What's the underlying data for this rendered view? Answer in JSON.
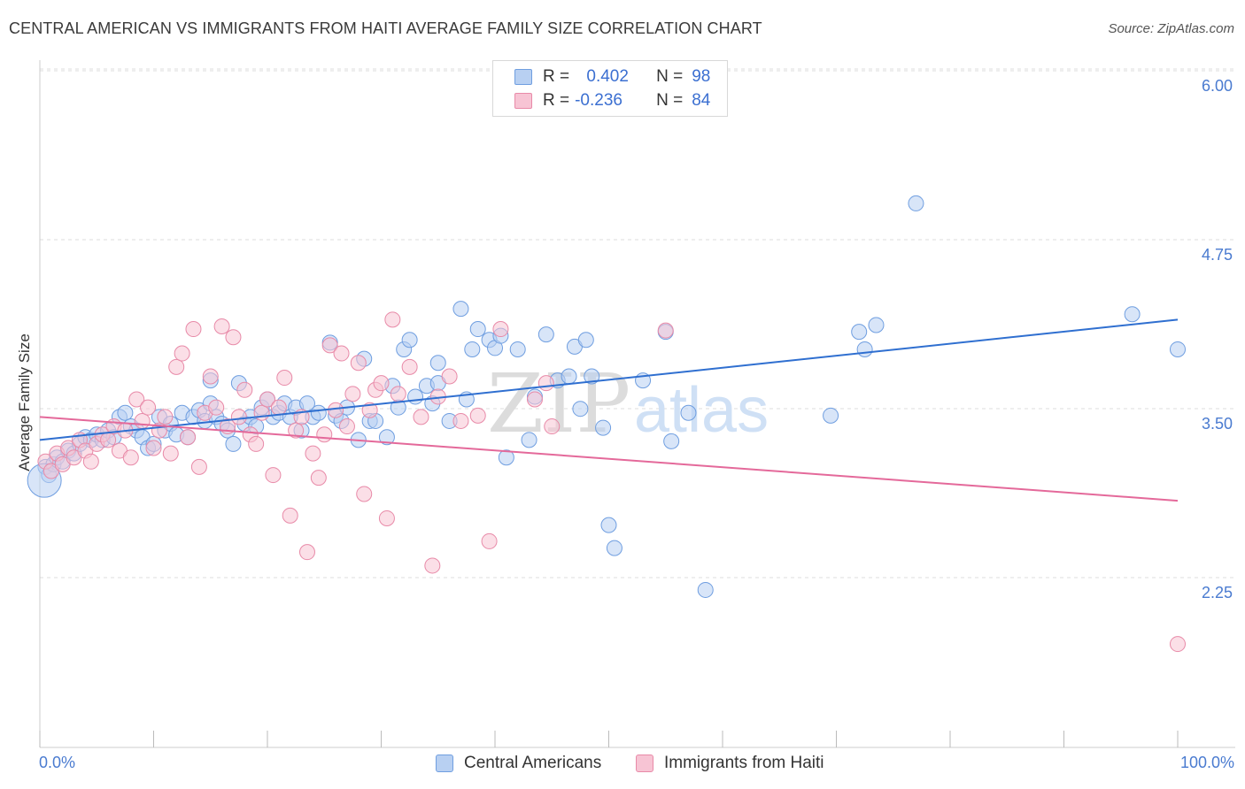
{
  "title": "CENTRAL AMERICAN VS IMMIGRANTS FROM HAITI AVERAGE FAMILY SIZE CORRELATION CHART",
  "source": "Source: ZipAtlas.com",
  "watermark": {
    "zip": "ZIP",
    "atlas": "atlas"
  },
  "colors": {
    "blue_fill": "#b8d0f2",
    "blue_stroke": "#6f9ee0",
    "blue_line": "#2f6fd0",
    "pink_fill": "#f7c4d4",
    "pink_stroke": "#e88aa8",
    "pink_line": "#e4699a",
    "tick_label": "#4a7bd0",
    "grid": "#dddddd"
  },
  "legend": {
    "rows": [
      {
        "r_label": "R =",
        "r_value": " 0.402",
        "n_label": "N =",
        "n_value": "98"
      },
      {
        "r_label": "R =",
        "r_value": "-0.236",
        "n_label": "N =",
        "n_value": "84"
      }
    ]
  },
  "x_labels": {
    "left": "0.0%",
    "right": "100.0%"
  },
  "bottom_legend": [
    "Central Americans",
    "Immigrants from Haiti"
  ],
  "chart_data": {
    "type": "scatter",
    "xlabel": "",
    "ylabel": "Average Family Size",
    "xlim": [
      0,
      100
    ],
    "ylim": [
      1.0,
      6.1
    ],
    "y_ticks": [
      2.25,
      3.5,
      4.75,
      6.0
    ],
    "y_tick_labels": [
      "2.25",
      "3.50",
      "4.75",
      "6.00"
    ],
    "grid": true,
    "series": [
      {
        "name": "Central Americans",
        "color": "blue",
        "trend": {
          "x": [
            0,
            100
          ],
          "y": [
            3.38,
            4.27
          ]
        },
        "points": [
          [
            0.5,
            3.18
          ],
          [
            0.8,
            3.12
          ],
          [
            1.2,
            3.2
          ],
          [
            1.5,
            3.25
          ],
          [
            2.0,
            3.22
          ],
          [
            2.5,
            3.3
          ],
          [
            3.0,
            3.28
          ],
          [
            3.5,
            3.35
          ],
          [
            4.0,
            3.4
          ],
          [
            4.5,
            3.38
          ],
          [
            5.0,
            3.42
          ],
          [
            5.5,
            3.38
          ],
          [
            6.0,
            3.45
          ],
          [
            6.5,
            3.4
          ],
          [
            7.0,
            3.55
          ],
          [
            7.5,
            3.58
          ],
          [
            8.0,
            3.48
          ],
          [
            8.5,
            3.45
          ],
          [
            9.0,
            3.4
          ],
          [
            9.5,
            3.32
          ],
          [
            10.0,
            3.35
          ],
          [
            10.5,
            3.55
          ],
          [
            11.0,
            3.45
          ],
          [
            11.5,
            3.5
          ],
          [
            12.0,
            3.42
          ],
          [
            12.5,
            3.58
          ],
          [
            13.0,
            3.4
          ],
          [
            13.5,
            3.55
          ],
          [
            14.0,
            3.6
          ],
          [
            14.5,
            3.52
          ],
          [
            15.0,
            3.82
          ],
          [
            15.0,
            3.65
          ],
          [
            15.5,
            3.55
          ],
          [
            16.0,
            3.5
          ],
          [
            16.5,
            3.45
          ],
          [
            17.0,
            3.35
          ],
          [
            17.5,
            3.8
          ],
          [
            18.0,
            3.5
          ],
          [
            18.5,
            3.55
          ],
          [
            19.0,
            3.48
          ],
          [
            19.5,
            3.62
          ],
          [
            20.0,
            3.68
          ],
          [
            20.5,
            3.55
          ],
          [
            21.0,
            3.58
          ],
          [
            21.5,
            3.65
          ],
          [
            22.0,
            3.55
          ],
          [
            22.5,
            3.62
          ],
          [
            23.0,
            3.45
          ],
          [
            23.5,
            3.65
          ],
          [
            24.0,
            3.55
          ],
          [
            24.5,
            3.58
          ],
          [
            25.5,
            4.1
          ],
          [
            26.0,
            3.56
          ],
          [
            26.5,
            3.52
          ],
          [
            27.0,
            3.62
          ],
          [
            28.0,
            3.38
          ],
          [
            28.5,
            3.98
          ],
          [
            29.0,
            3.52
          ],
          [
            29.5,
            3.52
          ],
          [
            30.5,
            3.4
          ],
          [
            31.0,
            3.78
          ],
          [
            31.5,
            3.62
          ],
          [
            32.0,
            4.05
          ],
          [
            32.5,
            4.12
          ],
          [
            33.0,
            3.7
          ],
          [
            34.0,
            3.78
          ],
          [
            34.5,
            3.65
          ],
          [
            35.0,
            3.8
          ],
          [
            35.0,
            3.95
          ],
          [
            36.0,
            3.52
          ],
          [
            37.0,
            4.35
          ],
          [
            37.5,
            3.68
          ],
          [
            38.0,
            4.05
          ],
          [
            38.5,
            4.2
          ],
          [
            39.5,
            4.12
          ],
          [
            40.0,
            4.06
          ],
          [
            40.5,
            4.15
          ],
          [
            41.0,
            3.25
          ],
          [
            42.0,
            4.05
          ],
          [
            43.0,
            3.38
          ],
          [
            43.5,
            3.7
          ],
          [
            44.5,
            4.16
          ],
          [
            45.5,
            3.82
          ],
          [
            46.5,
            3.85
          ],
          [
            47.0,
            4.07
          ],
          [
            47.5,
            3.61
          ],
          [
            48.0,
            4.12
          ],
          [
            48.5,
            3.85
          ],
          [
            49.5,
            3.47
          ],
          [
            50.0,
            2.75
          ],
          [
            50.5,
            2.58
          ],
          [
            53.0,
            3.82
          ],
          [
            55.0,
            4.18
          ],
          [
            55.5,
            3.37
          ],
          [
            57.0,
            3.58
          ],
          [
            58.5,
            2.27
          ],
          [
            69.5,
            3.56
          ],
          [
            72.0,
            4.18
          ],
          [
            72.5,
            4.05
          ],
          [
            73.5,
            4.23
          ],
          [
            77.0,
            5.13
          ],
          [
            96.0,
            4.31
          ],
          [
            100.0,
            4.05
          ]
        ],
        "big_points": [
          [
            0.4,
            3.08
          ]
        ]
      },
      {
        "name": "Immigrants from Haiti",
        "color": "pink",
        "trend": {
          "x": [
            0,
            100
          ],
          "y": [
            3.55,
            2.93
          ]
        },
        "points": [
          [
            0.5,
            3.22
          ],
          [
            1.0,
            3.15
          ],
          [
            1.5,
            3.28
          ],
          [
            2.0,
            3.2
          ],
          [
            2.5,
            3.32
          ],
          [
            3.0,
            3.25
          ],
          [
            3.5,
            3.38
          ],
          [
            4.0,
            3.3
          ],
          [
            4.5,
            3.22
          ],
          [
            5.0,
            3.35
          ],
          [
            5.5,
            3.42
          ],
          [
            6.0,
            3.38
          ],
          [
            6.5,
            3.48
          ],
          [
            7.0,
            3.3
          ],
          [
            7.5,
            3.45
          ],
          [
            8.0,
            3.25
          ],
          [
            8.5,
            3.68
          ],
          [
            9.0,
            3.52
          ],
          [
            9.5,
            3.62
          ],
          [
            10.0,
            3.32
          ],
          [
            10.5,
            3.45
          ],
          [
            11.0,
            3.55
          ],
          [
            11.5,
            3.28
          ],
          [
            12.0,
            3.92
          ],
          [
            12.5,
            4.02
          ],
          [
            13.0,
            3.4
          ],
          [
            13.5,
            4.2
          ],
          [
            14.0,
            3.18
          ],
          [
            14.5,
            3.58
          ],
          [
            15.0,
            3.85
          ],
          [
            15.5,
            3.62
          ],
          [
            16.0,
            4.22
          ],
          [
            16.5,
            3.48
          ],
          [
            17.0,
            4.14
          ],
          [
            17.5,
            3.55
          ],
          [
            18.0,
            3.75
          ],
          [
            18.5,
            3.42
          ],
          [
            19.0,
            3.35
          ],
          [
            19.5,
            3.58
          ],
          [
            20.0,
            3.68
          ],
          [
            20.5,
            3.12
          ],
          [
            21.0,
            3.62
          ],
          [
            21.5,
            3.84
          ],
          [
            22.0,
            2.82
          ],
          [
            22.5,
            3.45
          ],
          [
            23.0,
            3.55
          ],
          [
            23.5,
            2.55
          ],
          [
            24.0,
            3.28
          ],
          [
            24.5,
            3.1
          ],
          [
            25.0,
            3.42
          ],
          [
            25.5,
            4.08
          ],
          [
            26.0,
            3.6
          ],
          [
            26.5,
            4.02
          ],
          [
            27.0,
            3.48
          ],
          [
            27.5,
            3.72
          ],
          [
            28.0,
            3.95
          ],
          [
            28.5,
            2.98
          ],
          [
            29.0,
            3.6
          ],
          [
            29.5,
            3.75
          ],
          [
            30.0,
            3.8
          ],
          [
            30.5,
            2.8
          ],
          [
            31.0,
            4.27
          ],
          [
            31.5,
            3.72
          ],
          [
            32.5,
            3.92
          ],
          [
            33.5,
            3.55
          ],
          [
            34.5,
            2.45
          ],
          [
            35.0,
            3.7
          ],
          [
            36.0,
            3.85
          ],
          [
            37.0,
            3.52
          ],
          [
            38.5,
            3.56
          ],
          [
            39.5,
            2.63
          ],
          [
            40.5,
            4.2
          ],
          [
            43.5,
            3.68
          ],
          [
            44.5,
            3.8
          ],
          [
            45.0,
            3.48
          ],
          [
            55.0,
            4.19
          ],
          [
            100.0,
            1.87
          ]
        ]
      }
    ]
  }
}
